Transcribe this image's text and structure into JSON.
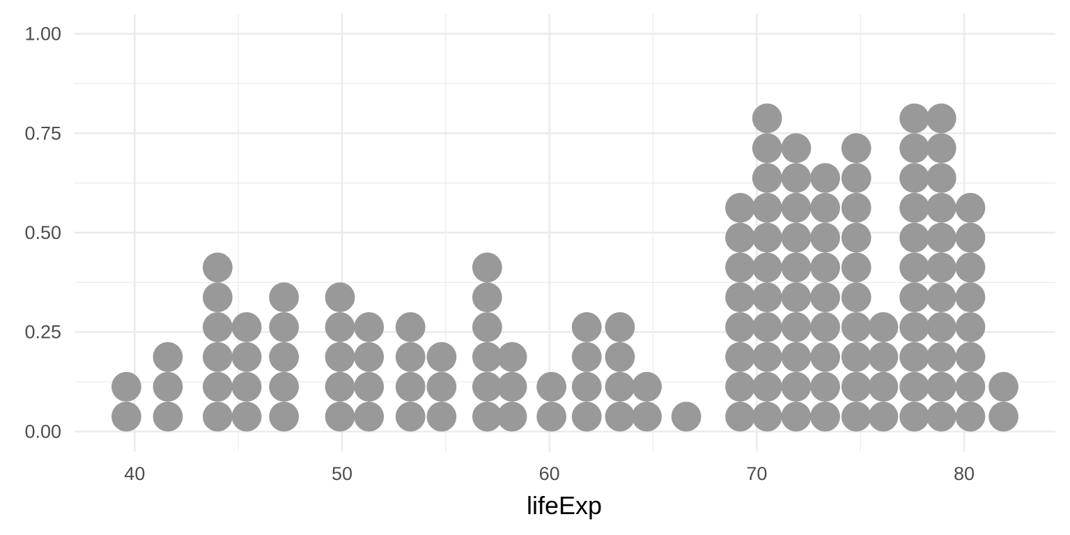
{
  "chart_data": {
    "type": "dotplot",
    "title": "",
    "xlabel": "lifeExp",
    "ylabel": "",
    "xlim": [
      37.1,
      84.4
    ],
    "ylim": [
      -0.05,
      1.05
    ],
    "x_ticks": [
      {
        "value": 40,
        "label": "40"
      },
      {
        "value": 50,
        "label": "50"
      },
      {
        "value": 60,
        "label": "60"
      },
      {
        "value": 70,
        "label": "70"
      },
      {
        "value": 80,
        "label": "80"
      }
    ],
    "y_ticks": [
      {
        "value": 0,
        "label": "0.00"
      },
      {
        "value": 0.25,
        "label": "0.25"
      },
      {
        "value": 0.5,
        "label": "0.50"
      },
      {
        "value": 0.75,
        "label": "0.75"
      },
      {
        "value": 1,
        "label": "1.00"
      }
    ],
    "grid": true,
    "dot_color": "#999999",
    "dot_row_step": 0.075,
    "stacks": [
      {
        "x": 39.6,
        "count": 2
      },
      {
        "x": 41.6,
        "count": 3
      },
      {
        "x": 44.0,
        "count": 6
      },
      {
        "x": 45.4,
        "count": 4
      },
      {
        "x": 47.2,
        "count": 5
      },
      {
        "x": 49.9,
        "count": 5
      },
      {
        "x": 51.3,
        "count": 4
      },
      {
        "x": 53.3,
        "count": 4
      },
      {
        "x": 54.8,
        "count": 3
      },
      {
        "x": 57.0,
        "count": 6
      },
      {
        "x": 58.2,
        "count": 3
      },
      {
        "x": 60.1,
        "count": 2
      },
      {
        "x": 61.8,
        "count": 4
      },
      {
        "x": 63.4,
        "count": 4
      },
      {
        "x": 64.7,
        "count": 2
      },
      {
        "x": 66.6,
        "count": 1
      },
      {
        "x": 69.2,
        "count": 8
      },
      {
        "x": 70.5,
        "count": 11
      },
      {
        "x": 71.9,
        "count": 10
      },
      {
        "x": 73.3,
        "count": 9
      },
      {
        "x": 74.8,
        "count": 10
      },
      {
        "x": 76.1,
        "count": 4
      },
      {
        "x": 77.6,
        "count": 11
      },
      {
        "x": 78.9,
        "count": 11
      },
      {
        "x": 80.3,
        "count": 8
      },
      {
        "x": 81.9,
        "count": 2
      }
    ]
  }
}
